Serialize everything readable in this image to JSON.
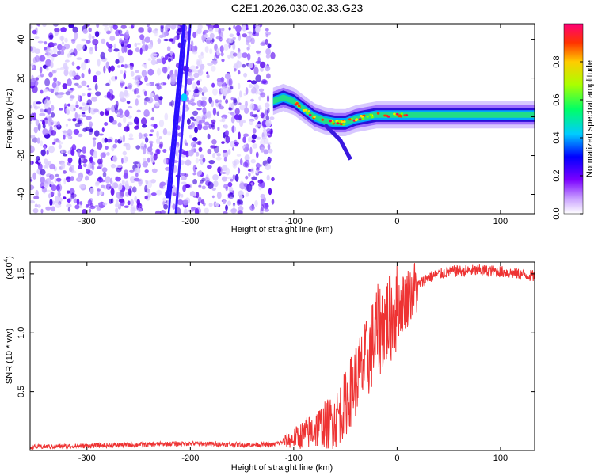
{
  "title": "C2E1.2026.030.02.33.G23",
  "chart_data": [
    {
      "type": "heatmap",
      "name": "spectrogram",
      "xlabel": "Height of straight line (km)",
      "ylabel": "Frequency (Hz)",
      "xlim": [
        -355,
        133
      ],
      "ylim": [
        -50,
        48
      ],
      "xticks": [
        -300,
        -200,
        -100,
        0,
        100
      ],
      "xtick_labels": [
        "-300",
        "-200",
        "-100",
        "0",
        "100"
      ],
      "yticks": [
        -40,
        -20,
        0,
        20,
        40
      ],
      "ytick_labels": [
        "-40",
        "-20",
        "0",
        "20",
        "40"
      ],
      "noise_region_x": [
        -355,
        -120
      ],
      "ridge": [
        {
          "x": -120,
          "f": 8
        },
        {
          "x": -110,
          "f": 10
        },
        {
          "x": -100,
          "f": 8
        },
        {
          "x": -90,
          "f": 4
        },
        {
          "x": -80,
          "f": 0
        },
        {
          "x": -70,
          "f": -2
        },
        {
          "x": -60,
          "f": -3
        },
        {
          "x": -50,
          "f": -3
        },
        {
          "x": -40,
          "f": -1
        },
        {
          "x": -30,
          "f": 0
        },
        {
          "x": -20,
          "f": 1
        },
        {
          "x": -10,
          "f": 1
        },
        {
          "x": 0,
          "f": 1
        },
        {
          "x": 20,
          "f": 1
        },
        {
          "x": 60,
          "f": 1
        },
        {
          "x": 100,
          "f": 1
        },
        {
          "x": 133,
          "f": 1
        }
      ],
      "colorbar": {
        "label": "Normalized spectral amplitude",
        "range": [
          0,
          1
        ],
        "ticks": [
          0.0,
          0.2,
          0.4,
          0.6,
          0.8
        ],
        "tick_labels": [
          "0.0",
          "0.2",
          "0.4",
          "0.6",
          "0.8"
        ]
      }
    },
    {
      "type": "line",
      "name": "snr",
      "xlabel": "Height of straight line (km)",
      "ylabel": "SNR (10 * v/v)",
      "y_multiplier": "(x10",
      "y_multiplier_exp": "4",
      "y_multiplier_close": ")",
      "xlim": [
        -355,
        133
      ],
      "ylim": [
        0,
        1.6
      ],
      "xticks": [
        -300,
        -200,
        -100,
        0,
        100
      ],
      "xtick_labels": [
        "-300",
        "-200",
        "-100",
        "0",
        "100"
      ],
      "yticks": [
        0.5,
        1.0,
        1.5
      ],
      "ytick_labels": [
        "0.5",
        "1.0",
        "1.5"
      ],
      "color": "#ee3333",
      "envelope": [
        {
          "x": -355,
          "y": 0.03
        },
        {
          "x": -300,
          "y": 0.04
        },
        {
          "x": -250,
          "y": 0.05
        },
        {
          "x": -200,
          "y": 0.06
        },
        {
          "x": -150,
          "y": 0.05
        },
        {
          "x": -120,
          "y": 0.05
        },
        {
          "x": -100,
          "y": 0.1
        },
        {
          "x": -80,
          "y": 0.18
        },
        {
          "x": -60,
          "y": 0.25
        },
        {
          "x": -50,
          "y": 0.4
        },
        {
          "x": -40,
          "y": 0.6
        },
        {
          "x": -30,
          "y": 0.75
        },
        {
          "x": -20,
          "y": 1.0
        },
        {
          "x": -10,
          "y": 1.1
        },
        {
          "x": 0,
          "y": 1.2
        },
        {
          "x": 10,
          "y": 1.3
        },
        {
          "x": 20,
          "y": 1.4
        },
        {
          "x": 30,
          "y": 1.47
        },
        {
          "x": 50,
          "y": 1.52
        },
        {
          "x": 80,
          "y": 1.53
        },
        {
          "x": 100,
          "y": 1.52
        },
        {
          "x": 133,
          "y": 1.48
        }
      ]
    }
  ]
}
